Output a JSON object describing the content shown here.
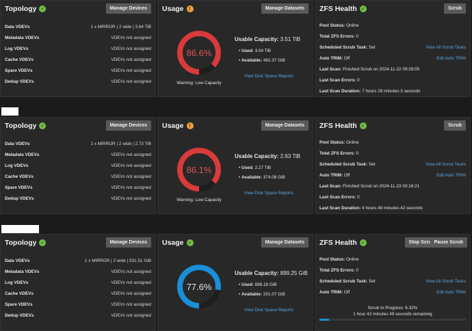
{
  "pools": [
    {
      "topology": {
        "title": "Topology",
        "button": "Manage Devices",
        "rows": [
          {
            "k": "Data VDEVs",
            "v": "1 x MIRROR | 2 wide | 3.64 TiB"
          },
          {
            "k": "Metadata VDEVs",
            "v": "VDEVs not assigned"
          },
          {
            "k": "Log VDEVs",
            "v": "VDEVs not assigned"
          },
          {
            "k": "Cache VDEVs",
            "v": "VDEVs not assigned"
          },
          {
            "k": "Spare VDEVs",
            "v": "VDEVs not assigned"
          },
          {
            "k": "Dedup VDEVs",
            "v": "VDEVs not assigned"
          }
        ]
      },
      "usage": {
        "title": "Usage",
        "button": "Manage Datasets",
        "percent_label": "86.6%",
        "percent": 86.6,
        "gauge_color": "#d93a3a",
        "text_color": "#e05555",
        "warning": "Warning: Low Capacity",
        "capacity_label": "Usable Capacity:",
        "capacity_value": "3.51 TiB",
        "used_label": "Used:",
        "used_value": "3.04 TiB",
        "available_label": "Available:",
        "available_value": "482.37 GiB",
        "link": "View Disk Space Reports"
      },
      "zfs": {
        "title": "ZFS Health",
        "buttons": [
          "Scrub"
        ],
        "lines": [
          {
            "k": "Pool Status:",
            "v": "Online"
          },
          {
            "k": "Total ZFS Errors:",
            "v": "0"
          },
          {
            "k": "Scheduled Scrub Task:",
            "v": "Set",
            "link": "View All Scrub Tasks"
          },
          {
            "k": "Auto TRIM:",
            "v": "Off",
            "link": "Edit Auto TRIM"
          },
          {
            "k": "Last Scan:",
            "v": "Finished Scrub on 2024-11-22 09:29:05"
          },
          {
            "k": "Last Scan Errors:",
            "v": "0"
          },
          {
            "k": "Last Scan Duration:",
            "v": "7 hours 29 minutes 3 seconds"
          }
        ]
      }
    },
    {
      "topology": {
        "title": "Topology",
        "button": "Manage Devices",
        "rows": [
          {
            "k": "Data VDEVs",
            "v": "1 x MIRROR | 2 wide | 2.73 TiB"
          },
          {
            "k": "Metadata VDEVs",
            "v": "VDEVs not assigned"
          },
          {
            "k": "Log VDEVs",
            "v": "VDEVs not assigned"
          },
          {
            "k": "Cache VDEVs",
            "v": "VDEVs not assigned"
          },
          {
            "k": "Spare VDEVs",
            "v": "VDEVs not assigned"
          },
          {
            "k": "Dedup VDEVs",
            "v": "VDEVs not assigned"
          }
        ]
      },
      "usage": {
        "title": "Usage",
        "button": "Manage Datasets",
        "percent_label": "86.1%",
        "percent": 86.1,
        "gauge_color": "#d93a3a",
        "text_color": "#e05555",
        "warning": "Warning: Low Capacity",
        "capacity_label": "Usable Capacity:",
        "capacity_value": "2.63 TiB",
        "used_label": "Used:",
        "used_value": "2.27 TiB",
        "available_label": "Available:",
        "available_value": "374.08 GiB",
        "link": "View Disk Space Reports"
      },
      "zfs": {
        "title": "ZFS Health",
        "buttons": [
          "Scrub"
        ],
        "lines": [
          {
            "k": "Pool Status:",
            "v": "Online"
          },
          {
            "k": "Total ZFS Errors:",
            "v": "0"
          },
          {
            "k": "Scheduled Scrub Task:",
            "v": "Set",
            "link": "View All Scrub Tasks"
          },
          {
            "k": "Auto TRIM:",
            "v": "Off",
            "link": "Edit Auto TRIM"
          },
          {
            "k": "Last Scan:",
            "v": "Finished Scrub on 2024-11-23 00:16:21"
          },
          {
            "k": "Last Scan Errors:",
            "v": "0"
          },
          {
            "k": "Last Scan Duration:",
            "v": "4 hours 48 minutes 42 seconds"
          }
        ]
      }
    },
    {
      "topology": {
        "title": "Topology",
        "button": "Manage Devices",
        "rows": [
          {
            "k": "Data VDEVs",
            "v": "1 x MIRROR | 2 wide | 931.51 GiB"
          },
          {
            "k": "Metadata VDEVs",
            "v": "VDEVs not assigned"
          },
          {
            "k": "Log VDEVs",
            "v": "VDEVs not assigned"
          },
          {
            "k": "Cache VDEVs",
            "v": "VDEVs not assigned"
          },
          {
            "k": "Spare VDEVs",
            "v": "VDEVs not assigned"
          },
          {
            "k": "Dedup VDEVs",
            "v": "VDEVs not assigned"
          }
        ]
      },
      "usage": {
        "title": "Usage",
        "button": "Manage Datasets",
        "percent_label": "77.6%",
        "percent": 77.6,
        "gauge_color": "#1a8fd8",
        "text_color": "#e6e6e6",
        "warning": "",
        "capacity_label": "Usable Capacity:",
        "capacity_value": "899.25 GiB",
        "used_label": "Used:",
        "used_value": "698.18 GiB",
        "available_label": "Available:",
        "available_value": "201.07 GiB",
        "link": "View Disk Space Reports"
      },
      "zfs": {
        "title": "ZFS Health",
        "buttons": [
          "Stop Scrub",
          "Pause Scrub"
        ],
        "lines": [
          {
            "k": "Pool Status:",
            "v": "Online"
          },
          {
            "k": "Total ZFS Errors:",
            "v": "0"
          },
          {
            "k": "Scheduled Scrub Task:",
            "v": "Set",
            "link": "View All Scrub Tasks"
          },
          {
            "k": "Auto TRIM:",
            "v": "Off",
            "link": "Edit Auto TRIM"
          }
        ],
        "scrub_progress_label": "Scrub In Progress: 6.32%",
        "scrub_progress": 6.32,
        "scrub_remaining": "1 hour 42 minutes 49 seconds remaining"
      }
    }
  ]
}
